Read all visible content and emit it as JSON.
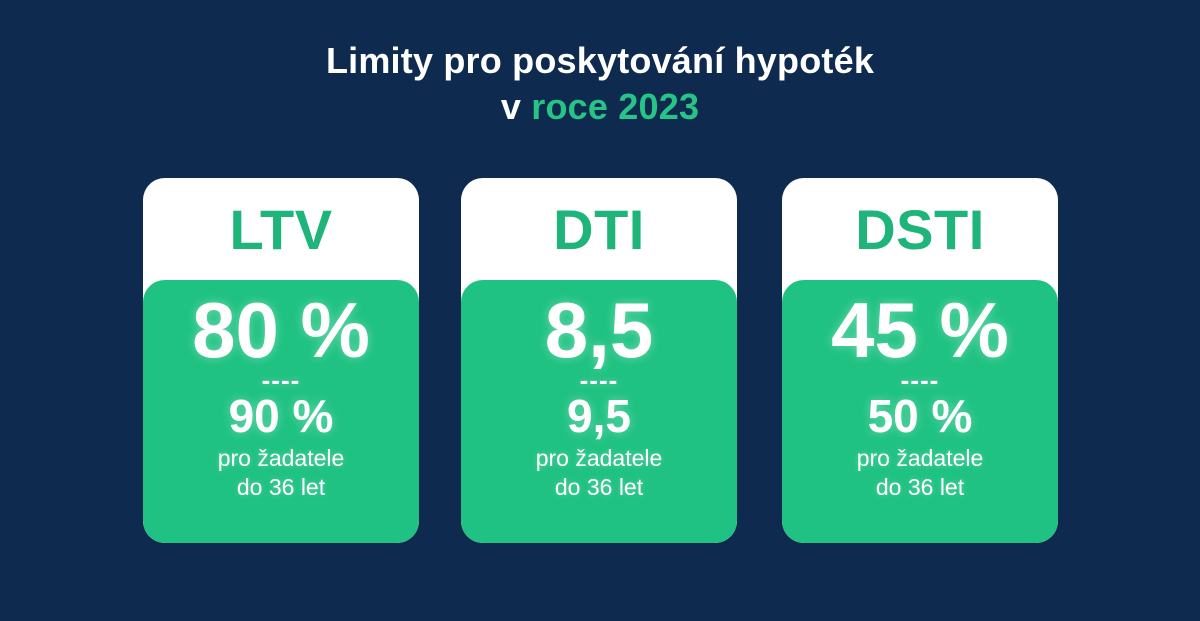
{
  "title": {
    "line1": "Limity pro poskytování hypoték",
    "line2_prefix": "v ",
    "line2_accent": "roce 2023"
  },
  "colors": {
    "background": "#0f2a4f",
    "accent_green": "#1fc282",
    "header_text_green": "#1fb47a",
    "title_accent": "#26c487"
  },
  "cards": [
    {
      "label": "LTV",
      "main_value": "80 %",
      "separator": "----",
      "young_value": "90 %",
      "note_line1": "pro žadatele",
      "note_line2": "do 36 let"
    },
    {
      "label": "DTI",
      "main_value": "8,5",
      "separator": "----",
      "young_value": "9,5",
      "note_line1": "pro žadatele",
      "note_line2": "do 36 let"
    },
    {
      "label": "DSTI",
      "main_value": "45 %",
      "separator": "----",
      "young_value": "50 %",
      "note_line1": "pro žadatele",
      "note_line2": "do 36 let"
    }
  ]
}
